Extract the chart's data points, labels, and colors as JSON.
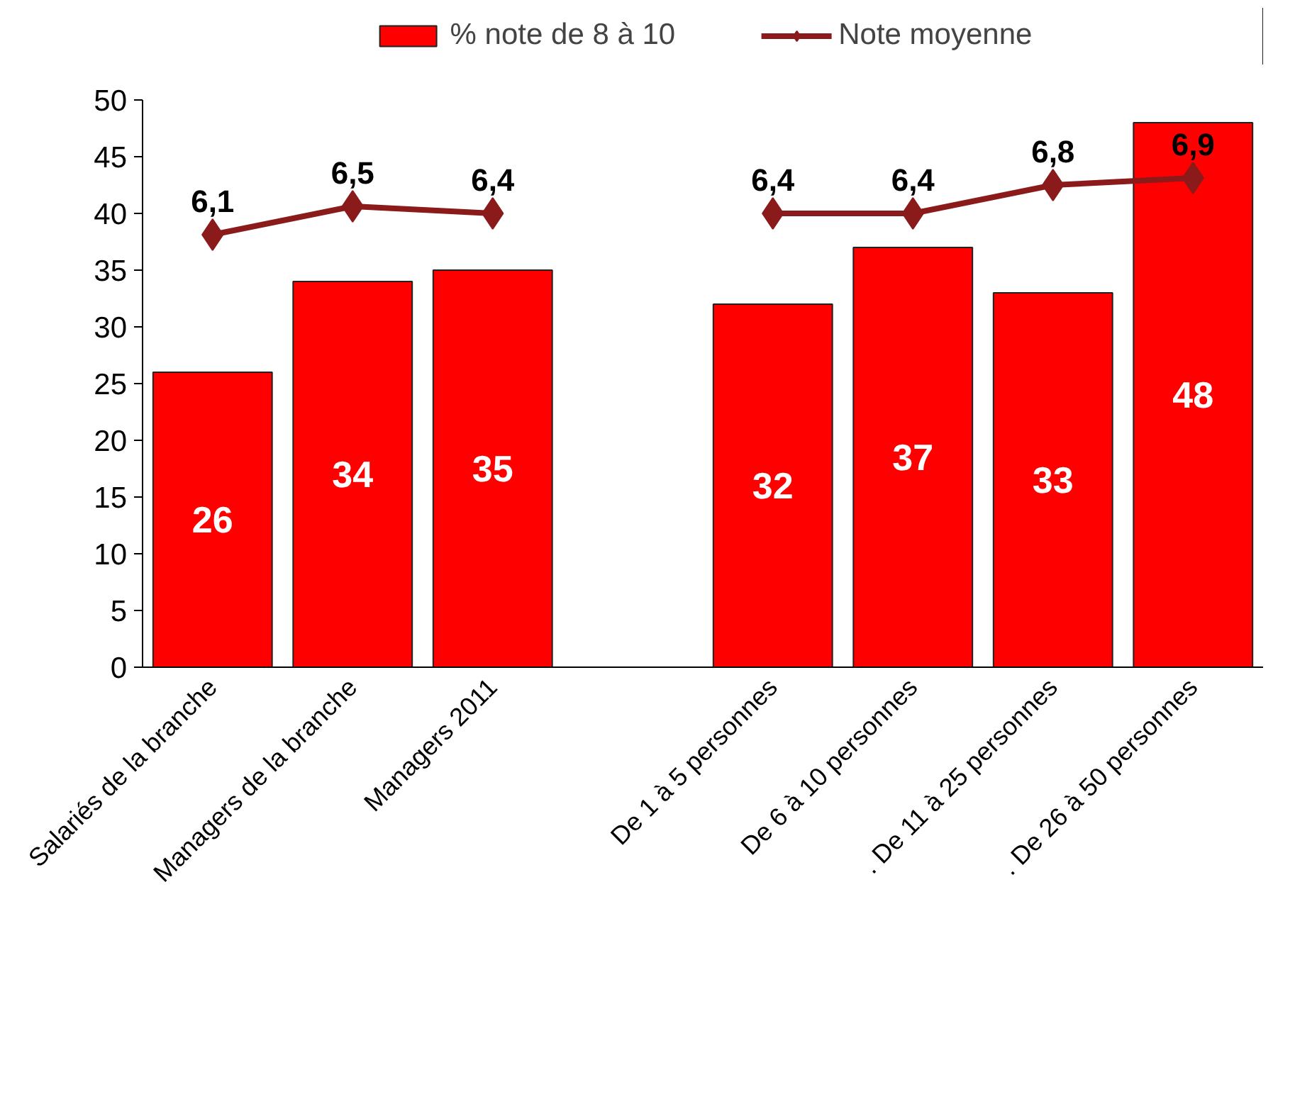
{
  "chart_data": {
    "type": "bar",
    "categories": [
      "Salariés de la branche",
      "Managers de la branche",
      "Managers 2011",
      null,
      "De 1 à 5 personnes",
      "De 6 à 10 personnes",
      ". De 11 à 25 personnes",
      ". De 26 à 50 personnes"
    ],
    "series": [
      {
        "name": "% note de 8 à 10",
        "color": "#ff0000",
        "values": [
          26,
          34,
          35,
          null,
          32,
          37,
          33,
          48
        ],
        "value_labels": [
          "26",
          "34",
          "35",
          null,
          "32",
          "37",
          "33",
          "48"
        ]
      },
      {
        "name": "Note moyenne",
        "type": "line",
        "axis": "y2",
        "color": "#8b1a1a",
        "values": [
          6.1,
          6.5,
          6.4,
          null,
          6.4,
          6.4,
          6.8,
          6.9
        ],
        "value_labels": [
          "6,1",
          "6,5",
          "6,4",
          null,
          "6,4",
          "6,4",
          "6,8",
          "6,9"
        ]
      }
    ],
    "ylim": [
      0,
      50
    ],
    "yticks": [
      0,
      5,
      10,
      15,
      20,
      25,
      30,
      35,
      40,
      45,
      50
    ],
    "y2lim": [
      0,
      8
    ],
    "legend": "top",
    "grid": false,
    "marker": "diamond",
    "line_style": "solid"
  }
}
